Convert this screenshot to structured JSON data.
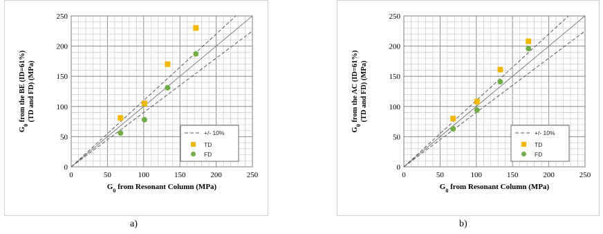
{
  "chart_data": [
    {
      "type": "scatter",
      "panel": "a)",
      "xlabel_main": "G",
      "xlabel_sub": "0",
      "xlabel_rest": " from Resonant Column (MPa)",
      "ylabel_line1_main": "G",
      "ylabel_line1_sub": "0",
      "ylabel_line1_rest": " from the BE (ID=61%)",
      "ylabel_line2": "(TD and FD) (MPa)",
      "xlim": [
        0,
        250
      ],
      "ylim": [
        0,
        250
      ],
      "xticks": [
        "0",
        "50",
        "100",
        "150",
        "200",
        "250"
      ],
      "yticks": [
        "0",
        "50",
        "100",
        "150",
        "200",
        "250"
      ],
      "grid": true,
      "legend_position": "lower-right",
      "reference_lines": {
        "identity": true,
        "band_label": "+/- 10%",
        "band": 0.1
      },
      "series": [
        {
          "name": "TD",
          "marker": "square",
          "color": "#f2b705",
          "x": [
            68,
            101,
            133,
            172
          ],
          "y": [
            81,
            105,
            170,
            230
          ]
        },
        {
          "name": "FD",
          "marker": "circle",
          "color": "#70ad47",
          "x": [
            68,
            101,
            133,
            172
          ],
          "y": [
            56,
            78,
            131,
            187
          ]
        }
      ]
    },
    {
      "type": "scatter",
      "panel": "b)",
      "xlabel_main": "G",
      "xlabel_sub": "0",
      "xlabel_rest": " from Resonant Column (MPa)",
      "ylabel_line1_main": "G",
      "ylabel_line1_sub": "0",
      "ylabel_line1_rest": " from the AC (ID=61%)",
      "ylabel_line2": "(TD and FD) (MPa)",
      "xlim": [
        0,
        250
      ],
      "ylim": [
        0,
        250
      ],
      "xticks": [
        "0",
        "50",
        "100",
        "150",
        "200",
        "250"
      ],
      "yticks": [
        "0",
        "50",
        "100",
        "150",
        "200",
        "250"
      ],
      "grid": true,
      "legend_position": "lower-right",
      "reference_lines": {
        "identity": true,
        "band_label": "+/- 10%",
        "band": 0.1
      },
      "series": [
        {
          "name": "TD",
          "marker": "square",
          "color": "#f2b705",
          "x": [
            68,
            101,
            133,
            172
          ],
          "y": [
            80,
            108,
            161,
            208
          ]
        },
        {
          "name": "FD",
          "marker": "circle",
          "color": "#70ad47",
          "x": [
            68,
            101,
            133,
            172
          ],
          "y": [
            63,
            94,
            141,
            196
          ]
        }
      ]
    }
  ],
  "captions": {
    "a": "a)",
    "b": "b)"
  }
}
